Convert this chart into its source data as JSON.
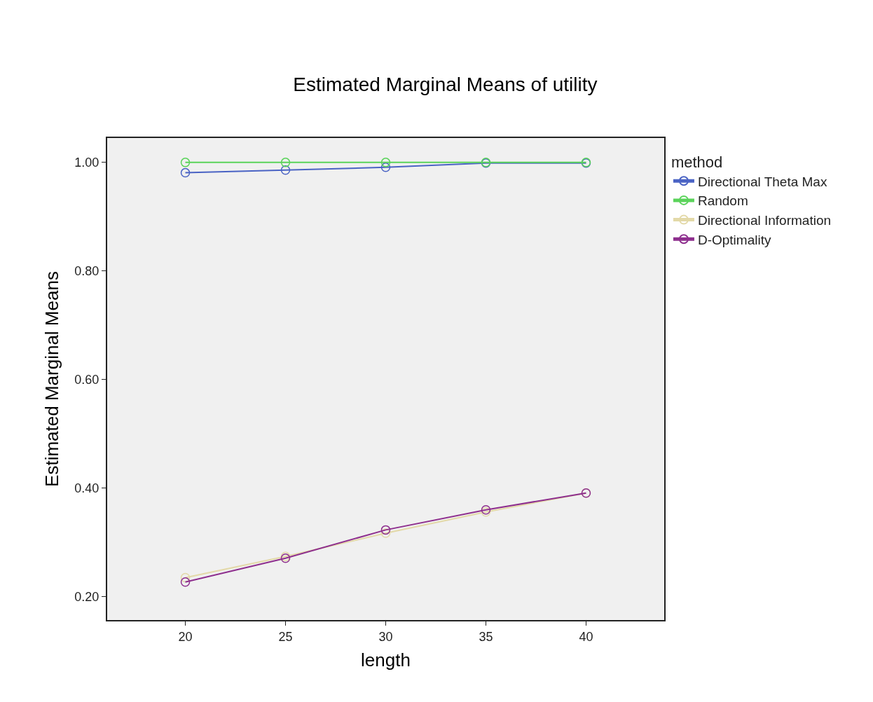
{
  "chart_data": {
    "type": "line",
    "title": "Estimated Marginal Means of utility",
    "xlabel": "length",
    "ylabel": "Estimated Marginal Means",
    "legend_title": "method",
    "x": [
      20,
      25,
      30,
      35,
      40
    ],
    "series": [
      {
        "name": "Directional Theta Max",
        "color": "#4a63c4",
        "values": [
          0.981,
          0.986,
          0.991,
          0.999,
          0.999
        ]
      },
      {
        "name": "Random",
        "color": "#5ad35a",
        "values": [
          1.0,
          1.0,
          1.0,
          1.0,
          1.0
        ]
      },
      {
        "name": "Directional Information",
        "color": "#e3d9a8",
        "values": [
          0.235,
          0.274,
          0.317,
          0.356,
          0.391
        ]
      },
      {
        "name": "D-Optimality",
        "color": "#8e2f8e",
        "values": [
          0.227,
          0.271,
          0.323,
          0.36,
          0.391
        ]
      }
    ],
    "xlim": [
      16.1,
      43.9
    ],
    "ylim": [
      0.157,
      1.045
    ],
    "xticks": [
      20,
      25,
      30,
      35,
      40
    ],
    "yticks": [
      {
        "value": 0.2,
        "label": "0.20"
      },
      {
        "value": 0.4,
        "label": "0.40"
      },
      {
        "value": 0.6,
        "label": "0.60"
      },
      {
        "value": 0.8,
        "label": "0.80"
      },
      {
        "value": 1.0,
        "label": "1.00"
      }
    ],
    "grid": false,
    "legend": "top right",
    "marker": "circle",
    "line_style": "solid"
  }
}
